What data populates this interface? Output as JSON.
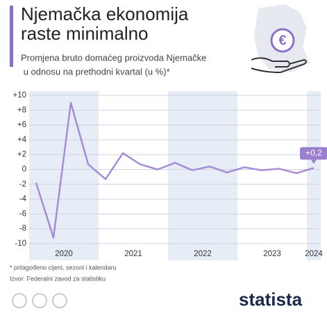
{
  "chart_data": {
    "type": "line",
    "title": [
      "Njemačka ekonomija",
      "raste minimalno"
    ],
    "subtitle": [
      "Promjena bruto domaćeg proizvoda Njemačke",
      " u odnosu na prethodni kvartal (u %)*"
    ],
    "categories": [
      null,
      null,
      null,
      null,
      null,
      null,
      null,
      null,
      null,
      null,
      null,
      null,
      null,
      null,
      null,
      null,
      null
    ],
    "year_labels": [
      "2020",
      "2021",
      "2022",
      "2023",
      "2024"
    ],
    "series": [
      {
        "name": null,
        "color": "#a58bd8",
        "values": [
          -1.8,
          -9.2,
          9.0,
          0.7,
          -1.3,
          2.2,
          0.7,
          0.0,
          0.9,
          -0.1,
          0.4,
          -0.4,
          0.3,
          -0.1,
          0.1,
          -0.5,
          0.2
        ],
        "value_labels": [
          null,
          null,
          null,
          null,
          null,
          null,
          null,
          null,
          null,
          null,
          null,
          null,
          null,
          null,
          null,
          null,
          "+0,2"
        ]
      }
    ],
    "ylim": [
      -10,
      10
    ],
    "yticks": [
      {
        "value": 10,
        "label": "+10"
      },
      {
        "value": 8,
        "label": "+8"
      },
      {
        "value": 6,
        "label": "+6"
      },
      {
        "value": 4,
        "label": "+4"
      },
      {
        "value": 2,
        "label": "+2"
      },
      0,
      -2,
      -4,
      -6,
      -8,
      -10
    ],
    "grid": true,
    "footnote": "* prilagođeno cijeni, sezoni i kalendaru",
    "source": "Izvor: Federalni zavod za statistiku",
    "brand": "statista"
  }
}
